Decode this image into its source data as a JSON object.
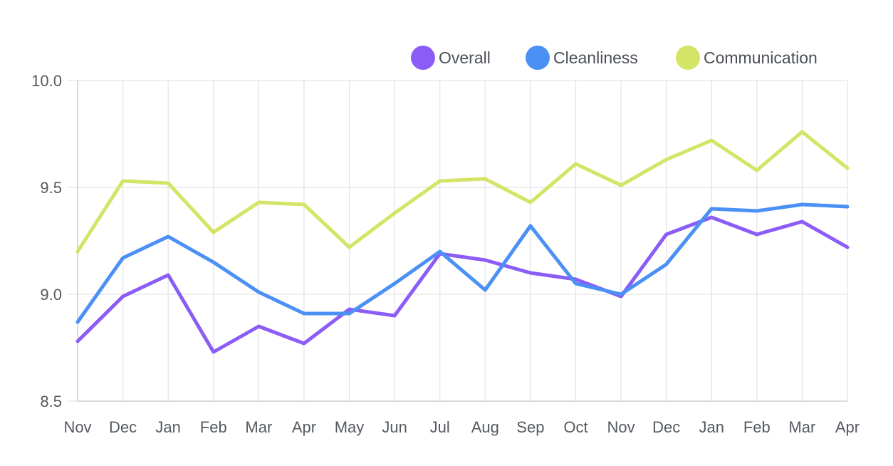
{
  "chart_data": {
    "type": "line",
    "categories": [
      "Nov",
      "Dec",
      "Jan",
      "Feb",
      "Mar",
      "Apr",
      "May",
      "Jun",
      "Jul",
      "Aug",
      "Sep",
      "Oct",
      "Nov",
      "Dec",
      "Jan",
      "Feb",
      "Mar",
      "Apr"
    ],
    "y_ticks": [
      "8.5",
      "9.0",
      "9.5",
      "10.0"
    ],
    "ylim": [
      8.5,
      10.0
    ],
    "grid": true,
    "legend_position": "top-right",
    "series": [
      {
        "name": "Overall",
        "color": "#8b5cf6",
        "values": [
          8.78,
          8.99,
          9.09,
          8.73,
          8.85,
          8.77,
          8.93,
          8.9,
          9.19,
          9.16,
          9.1,
          9.07,
          8.99,
          9.28,
          9.36,
          9.28,
          9.34,
          9.22
        ]
      },
      {
        "name": "Cleanliness",
        "color": "#4a90f5",
        "values": [
          8.87,
          9.17,
          9.27,
          9.15,
          9.01,
          8.91,
          8.91,
          9.05,
          9.2,
          9.02,
          9.32,
          9.05,
          9.0,
          9.14,
          9.4,
          9.39,
          9.42,
          9.41
        ]
      },
      {
        "name": "Communication",
        "color": "#d4e466",
        "values": [
          9.2,
          9.53,
          9.52,
          9.29,
          9.43,
          9.42,
          9.22,
          9.38,
          9.53,
          9.54,
          9.43,
          9.61,
          9.51,
          9.63,
          9.72,
          9.58,
          9.76,
          9.59
        ]
      }
    ]
  }
}
